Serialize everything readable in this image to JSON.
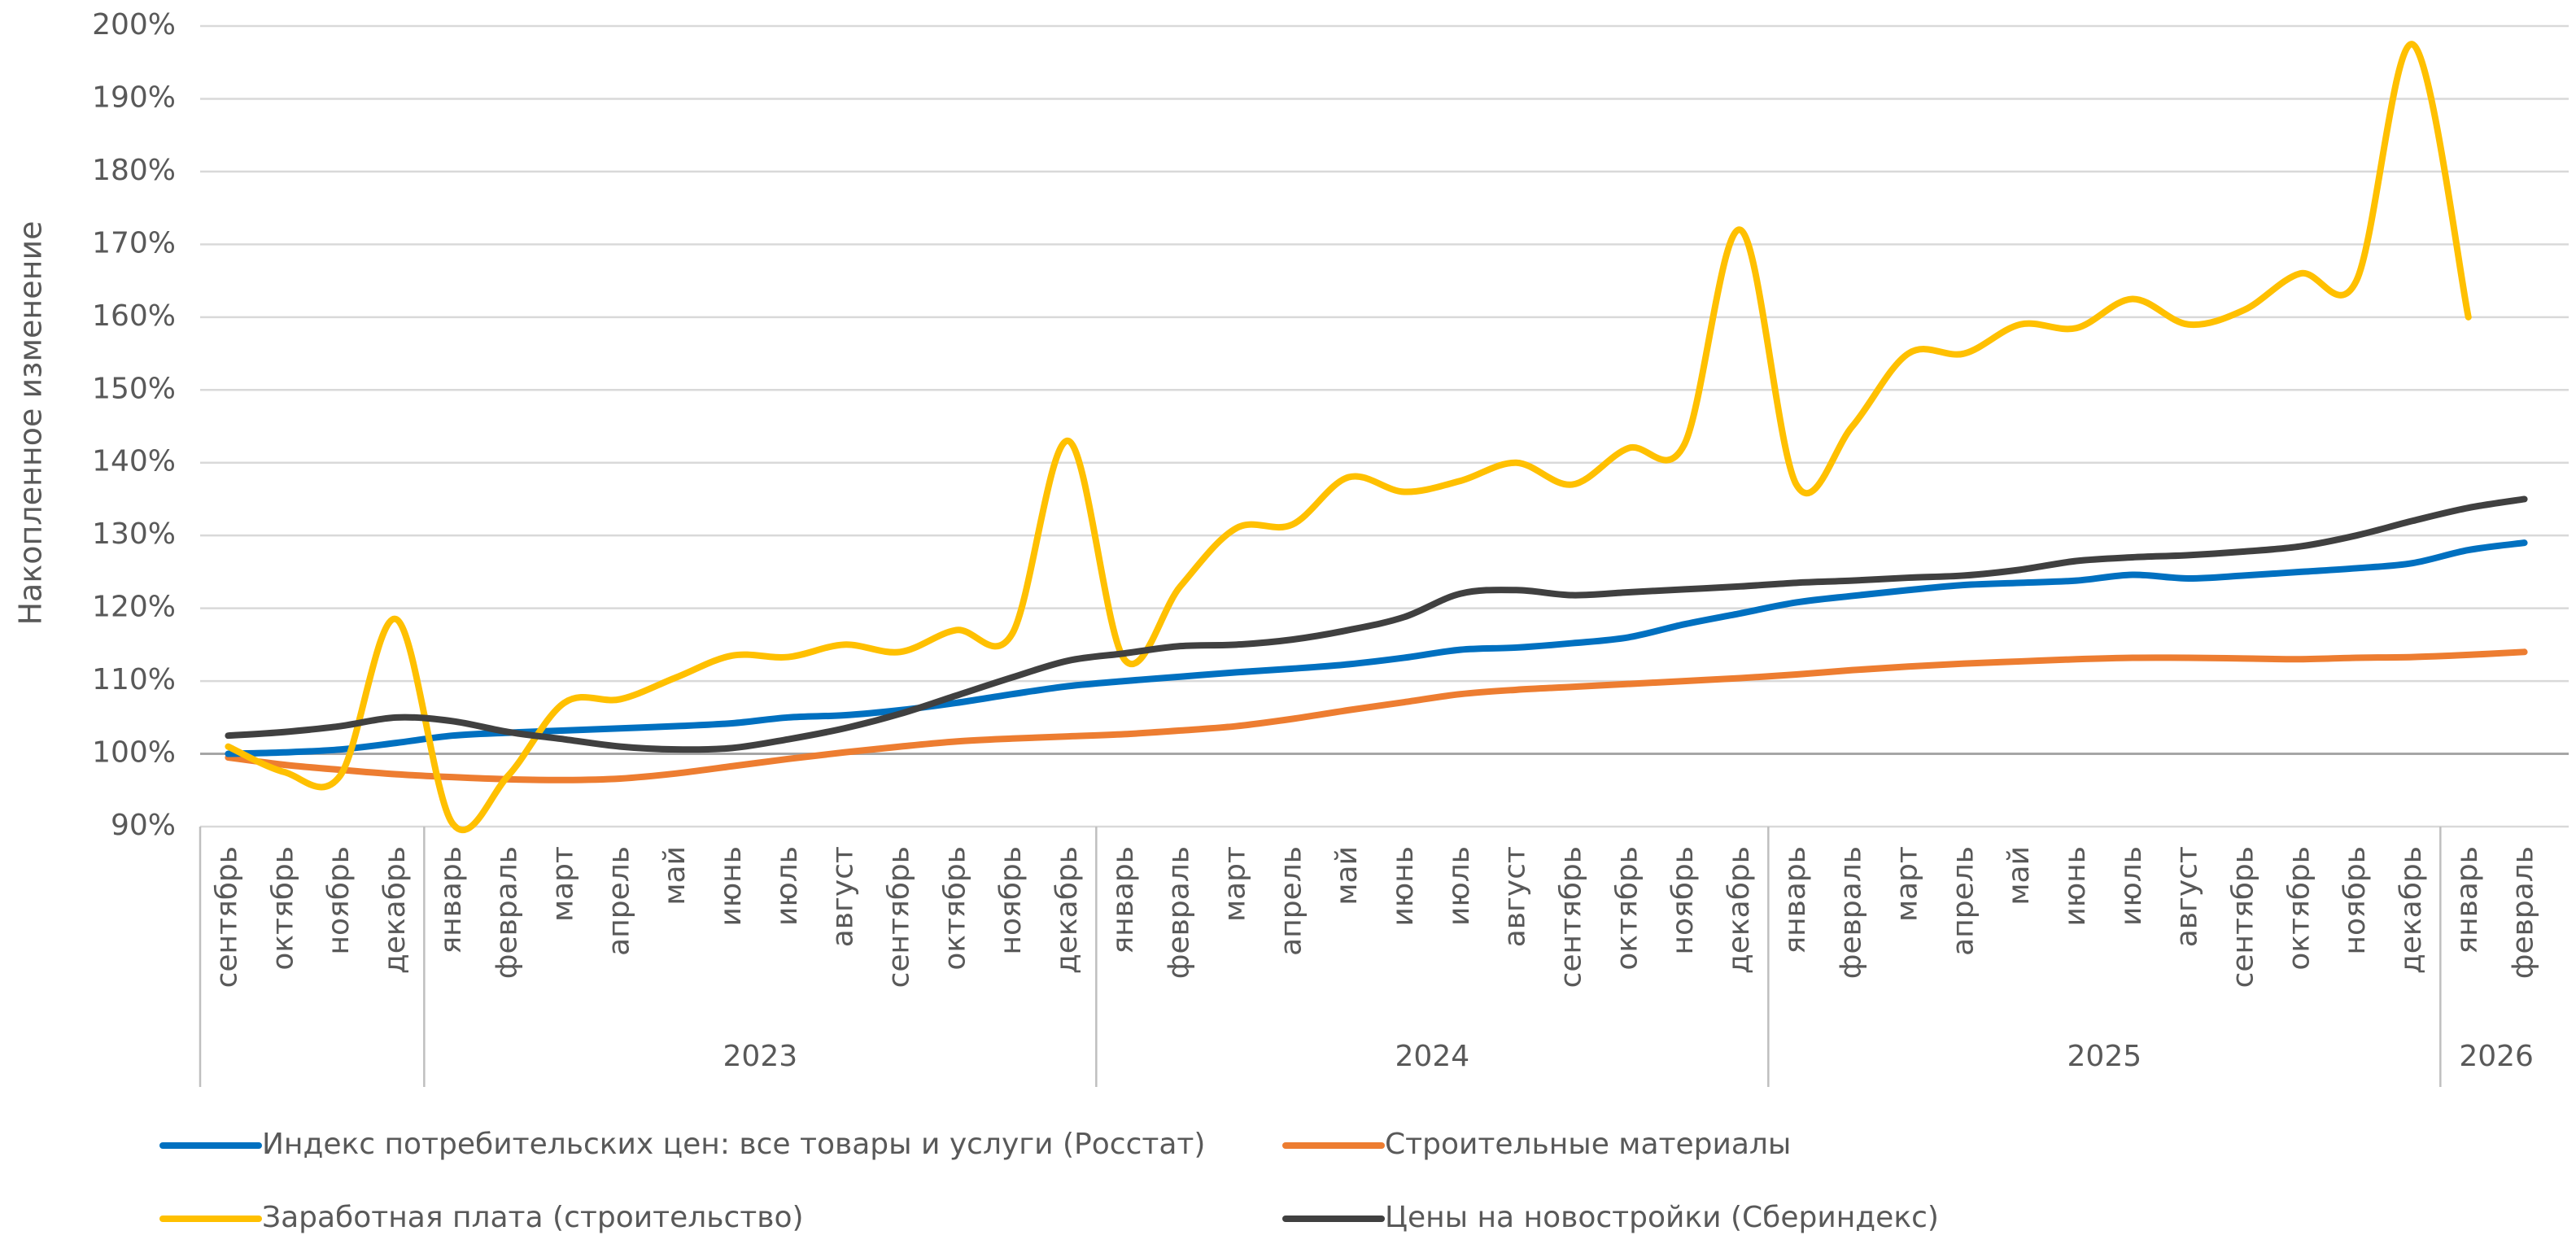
{
  "chart_data": {
    "type": "line",
    "y_label": "Накопленное изменение",
    "groups": [
      {
        "year": null,
        "months": [
          "сентябрь",
          "октябрь",
          "ноябрь",
          "декабрь"
        ]
      },
      {
        "year": "2023",
        "months": [
          "январь",
          "февраль",
          "март",
          "апрель",
          "май",
          "июнь",
          "июль",
          "август",
          "сентябрь",
          "октябрь",
          "ноябрь",
          "декабрь"
        ]
      },
      {
        "year": "2024",
        "months": [
          "январь",
          "февраль",
          "март",
          "апрель",
          "май",
          "июнь",
          "июль",
          "август",
          "сентябрь",
          "октябрь",
          "ноябрь",
          "декабрь"
        ]
      },
      {
        "year": "2025",
        "months": [
          "январь",
          "февраль",
          "март",
          "апрель",
          "май",
          "июнь",
          "июль",
          "август",
          "сентябрь",
          "октябрь",
          "ноябрь",
          "декабрь"
        ]
      },
      {
        "year": "2026",
        "months": [
          "январь",
          "февраль"
        ]
      }
    ],
    "ylim": [
      90,
      200
    ],
    "yticks": [
      {
        "value": 90,
        "label": "90%"
      },
      {
        "value": 100,
        "label": "100%"
      },
      {
        "value": 110,
        "label": "110%"
      },
      {
        "value": 120,
        "label": "120%"
      },
      {
        "value": 130,
        "label": "130%"
      },
      {
        "value": 140,
        "label": "140%"
      },
      {
        "value": 150,
        "label": "150%"
      },
      {
        "value": 160,
        "label": "160%"
      },
      {
        "value": 170,
        "label": "170%"
      },
      {
        "value": 180,
        "label": "180%"
      },
      {
        "value": 190,
        "label": "190%"
      },
      {
        "value": 200,
        "label": "200%"
      }
    ],
    "grid": true,
    "baseline": 100,
    "series": [
      {
        "name": "Индекс потребительских цен: все товары и услуги (Росстат)",
        "color": "#0070c0",
        "values": [
          100,
          100.2,
          100.6,
          101.5,
          102.5,
          102.9,
          103.2,
          103.5,
          103.8,
          104.2,
          105,
          105.3,
          106,
          107,
          108.2,
          109.3,
          110,
          110.6,
          111.2,
          111.7,
          112.3,
          113.2,
          114.3,
          114.6,
          115.2,
          116,
          117.8,
          119.3,
          120.8,
          121.7,
          122.5,
          123.2,
          123.5,
          123.8,
          124.6,
          124.1,
          124.5,
          125,
          125.5,
          126.2,
          128,
          129
        ]
      },
      {
        "name": "Строительные материалы",
        "color": "#ed7d31",
        "values": [
          99.5,
          98.5,
          97.8,
          97.2,
          96.8,
          96.5,
          96.4,
          96.6,
          97.3,
          98.3,
          99.3,
          100.2,
          101,
          101.7,
          102.1,
          102.4,
          102.7,
          103.2,
          103.8,
          104.8,
          106,
          107.1,
          108.2,
          108.8,
          109.2,
          109.6,
          110,
          110.4,
          110.9,
          111.5,
          112,
          112.4,
          112.7,
          113,
          113.2,
          113.2,
          113.1,
          113,
          113.2,
          113.3,
          113.6,
          114
        ]
      },
      {
        "name": "Заработная плата (строительство)",
        "color": "#ffc000",
        "values": [
          101,
          97.5,
          97,
          118.5,
          90.5,
          97,
          107,
          107.5,
          110.5,
          113.5,
          113.3,
          115,
          114,
          117,
          116.5,
          143,
          113,
          123,
          131,
          131.5,
          138,
          136,
          137.5,
          140,
          137,
          142,
          142.5,
          172,
          137,
          145,
          155,
          155,
          159,
          158.5,
          162.5,
          159,
          161,
          166,
          165,
          197.5,
          160,
          null
        ]
      },
      {
        "name": "Цены на новостройки (Сбериндекс)",
        "color": "#404040",
        "values": [
          102.5,
          103,
          103.8,
          105,
          104.5,
          103,
          102,
          101,
          100.6,
          100.8,
          102,
          103.5,
          105.5,
          108,
          110.5,
          112.8,
          113.8,
          114.8,
          115,
          115.7,
          117,
          118.8,
          122,
          122.5,
          121.8,
          122.2,
          122.6,
          123,
          123.5,
          123.8,
          124.2,
          124.5,
          125.3,
          126.5,
          127,
          127.3,
          127.8,
          128.5,
          130,
          132,
          133.8,
          135
        ]
      }
    ]
  }
}
